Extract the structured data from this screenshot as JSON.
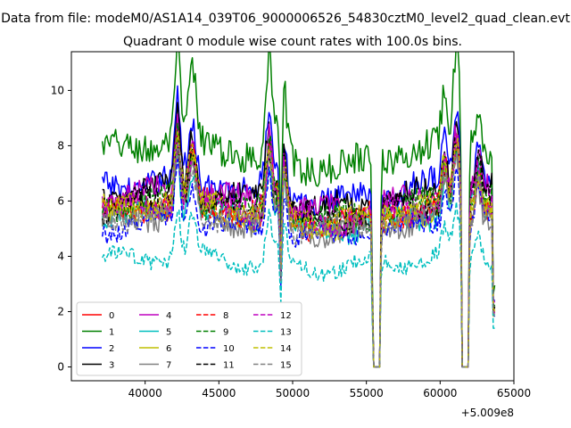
{
  "chart_data": {
    "type": "line",
    "suptitle": "Data from file: modeM0/AS1A14_039T06_9000006526_54830cztM0_level2_quad_clean.evt",
    "title": "Quadrant 0 module wise count rates with 100.0s bins.",
    "xlabel": "",
    "ylabel": "",
    "x_offset_label": "+5.009e8",
    "xlim": [
      35000,
      65000
    ],
    "ylim": [
      -0.5,
      11.4
    ],
    "xticks": [
      40000,
      45000,
      50000,
      55000,
      60000,
      65000
    ],
    "xtick_labels": [
      "40000",
      "45000",
      "50000",
      "55000",
      "60000",
      "65000"
    ],
    "yticks": [
      0,
      2,
      4,
      6,
      8,
      10
    ],
    "ytick_labels": [
      "0",
      "2",
      "4",
      "6",
      "8",
      "10"
    ],
    "grid": false,
    "legend_position": "lower-left",
    "legend_columns": 4,
    "x_range": [
      37100,
      63700
    ],
    "dropouts": [
      {
        "start": 55450,
        "end": 55900,
        "bottom": 0.0
      },
      {
        "start": 61500,
        "end": 61900,
        "bottom": 0.0
      }
    ],
    "dips": [
      {
        "x": 49200,
        "depth_fraction": 0.55
      }
    ],
    "flares": [
      {
        "x": 42200,
        "extra": 3.0,
        "width": 250
      },
      {
        "x": 43200,
        "extra": 2.2,
        "width": 350
      },
      {
        "x": 48400,
        "extra": 3.2,
        "width": 300
      },
      {
        "x": 49300,
        "extra": 3.0,
        "width": 350
      },
      {
        "x": 60300,
        "extra": 1.8,
        "width": 250
      },
      {
        "x": 61100,
        "extra": 2.8,
        "width": 300
      },
      {
        "x": 62600,
        "extra": 1.5,
        "width": 250
      }
    ],
    "series": [
      {
        "name": "0",
        "color": "#ff0000",
        "dash": "solid",
        "base": 5.6
      },
      {
        "name": "1",
        "color": "#008000",
        "dash": "solid",
        "base": 7.7
      },
      {
        "name": "2",
        "color": "#0000ff",
        "dash": "solid",
        "base": 6.4
      },
      {
        "name": "3",
        "color": "#000000",
        "dash": "solid",
        "base": 6.1
      },
      {
        "name": "4",
        "color": "#bf00bf",
        "dash": "solid",
        "base": 6.0
      },
      {
        "name": "5",
        "color": "#00bfbf",
        "dash": "solid",
        "base": 5.3
      },
      {
        "name": "6",
        "color": "#bfbf00",
        "dash": "solid",
        "base": 5.5
      },
      {
        "name": "7",
        "color": "#808080",
        "dash": "solid",
        "base": 5.2
      },
      {
        "name": "8",
        "color": "#ff0000",
        "dash": "dashed",
        "base": 5.5
      },
      {
        "name": "9",
        "color": "#008000",
        "dash": "dashed",
        "base": 5.7
      },
      {
        "name": "10",
        "color": "#0000ff",
        "dash": "dashed",
        "base": 5.0
      },
      {
        "name": "11",
        "color": "#000000",
        "dash": "dashed",
        "base": 5.7
      },
      {
        "name": "12",
        "color": "#bf00bf",
        "dash": "dashed",
        "base": 5.6
      },
      {
        "name": "13",
        "color": "#00bfbf",
        "dash": "dashed",
        "base": 3.8
      },
      {
        "name": "14",
        "color": "#bfbf00",
        "dash": "dashed",
        "base": 5.6
      },
      {
        "name": "15",
        "color": "#808080",
        "dash": "dashed",
        "base": 5.3
      }
    ]
  }
}
